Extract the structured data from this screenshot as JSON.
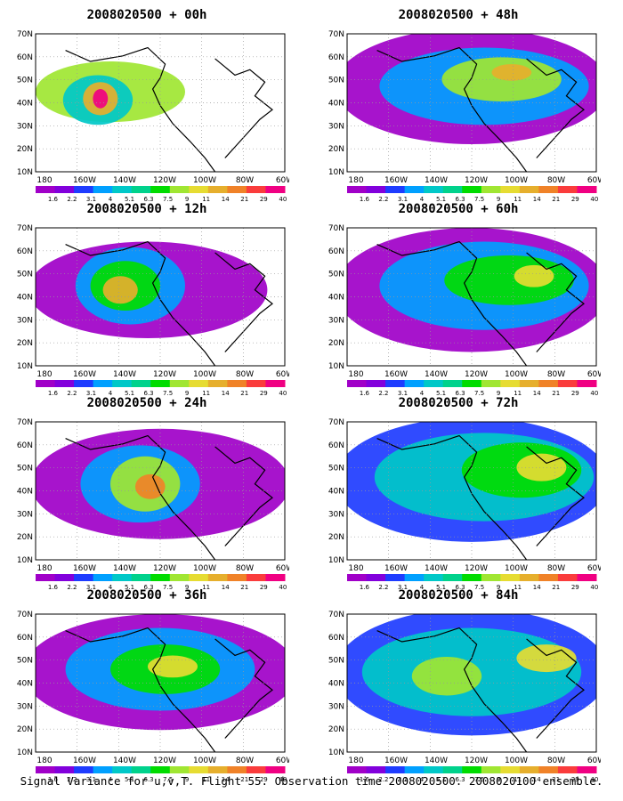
{
  "panels": [
    {
      "title": "2008020500 + 00h",
      "column": 0,
      "row": 0
    },
    {
      "title": "2008020500 + 12h",
      "column": 0,
      "row": 1
    },
    {
      "title": "2008020500 + 24h",
      "column": 0,
      "row": 2
    },
    {
      "title": "2008020500 + 36h",
      "column": 0,
      "row": 3
    },
    {
      "title": "2008020500 + 48h",
      "column": 1,
      "row": 0
    },
    {
      "title": "2008020500 + 60h",
      "column": 1,
      "row": 1
    },
    {
      "title": "2008020500 + 72h",
      "column": 1,
      "row": 2
    },
    {
      "title": "2008020500 + 84h",
      "column": 1,
      "row": 3
    }
  ],
  "lat_labels": [
    "70N",
    "60N",
    "50N",
    "40N",
    "30N",
    "20N",
    "10N"
  ],
  "lon_labels": [
    "180",
    "160W",
    "140W",
    "120W",
    "100W",
    "80W",
    "60W"
  ],
  "colorbar": {
    "labels": [
      "1.6",
      "2.2",
      "3.1",
      "4",
      "5.1",
      "6.3",
      "7.5",
      "9",
      "11",
      "14",
      "21",
      "29",
      "40"
    ],
    "colors": [
      "#a000c8",
      "#8200dc",
      "#1e3cff",
      "#00a0ff",
      "#00c8c8",
      "#00d28c",
      "#00dc00",
      "#a0e632",
      "#e6dc32",
      "#e6af2d",
      "#f08228",
      "#fa3c3c",
      "#f00082"
    ]
  },
  "caption": "Signal Variance for u,v,T. Flight 55. Observation time 2008020500. 2008020100 ensemble."
}
